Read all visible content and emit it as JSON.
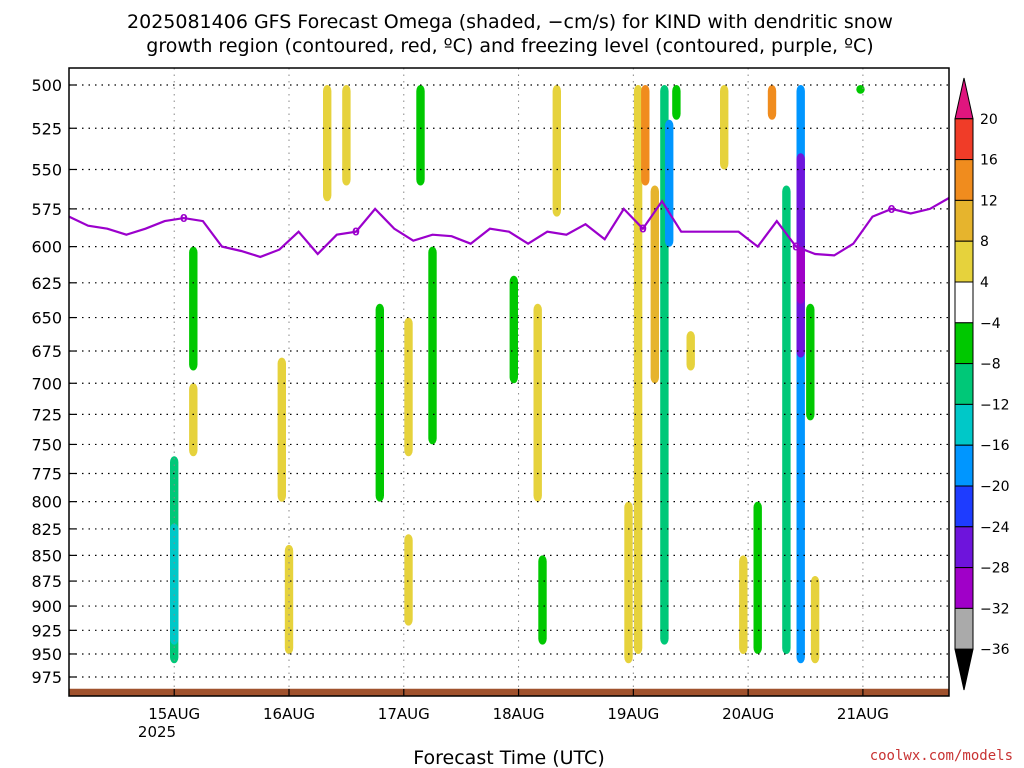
{
  "chart_data": {
    "type": "heatmap",
    "title_line1": "2025081406 GFS Forecast Omega (shaded, −cm/s) for KIND with dendritic snow",
    "title_line2": "growth region (contoured, red, ºC) and freezing level (contoured, purple, ºC)",
    "xlabel": "Forecast Time (UTC)",
    "x_ticks": [
      "15AUG",
      "16AUG",
      "17AUG",
      "18AUG",
      "19AUG",
      "20AUG",
      "21AUG"
    ],
    "x_year_label": "2025",
    "x_range_hours": [
      -22,
      162
    ],
    "y_ticks": [
      500,
      525,
      550,
      575,
      600,
      625,
      650,
      675,
      700,
      725,
      750,
      775,
      800,
      825,
      850,
      875,
      900,
      925,
      950,
      975
    ],
    "y_scale": "log-pressure",
    "y_range_hpa": [
      490,
      990
    ],
    "grid": true,
    "colorbar_levels": [
      20,
      16,
      12,
      8,
      4,
      -4,
      -8,
      -12,
      -16,
      -20,
      -24,
      -28,
      -32,
      -36
    ],
    "colorbar_colors": [
      "#e0157e",
      "#f03c28",
      "#f08c1e",
      "#e6b42d",
      "#e6d23c",
      "#ffffff",
      "#00c800",
      "#00c878",
      "#00c8c8",
      "#0096ff",
      "#1e3cff",
      "#6e14dc",
      "#a000c8",
      "#aaaaaa",
      "#000000"
    ],
    "freezing_level_label": "0",
    "freezing_level_series": {
      "name": "freezing level (0ºC)",
      "color": "#9b00cc",
      "hours": [
        -22,
        -18,
        -14,
        -10,
        -6,
        -2,
        2,
        6,
        10,
        14,
        18,
        22,
        26,
        30,
        34,
        38,
        42,
        46,
        50,
        54,
        58,
        62,
        66,
        70,
        74,
        78,
        82,
        86,
        90,
        94,
        98,
        102,
        106,
        110,
        114,
        118,
        122,
        126,
        130,
        134,
        138,
        142,
        146,
        150,
        154,
        158,
        162
      ],
      "hpa": [
        580,
        586,
        588,
        592,
        588,
        583,
        581,
        583,
        600,
        603,
        607,
        602,
        590,
        605,
        592,
        590,
        575,
        588,
        596,
        592,
        593,
        598,
        588,
        590,
        598,
        590,
        592,
        585,
        595,
        575,
        588,
        570,
        590,
        590,
        590,
        590,
        600,
        583,
        600,
        605,
        606,
        598,
        580,
        575,
        578,
        575,
        568
      ]
    },
    "omega_shading": [
      {
        "hour": 0.0,
        "p_top": 760,
        "p_bot": 960,
        "value": -10
      },
      {
        "hour": 0.0,
        "p_top": 820,
        "p_bot": 940,
        "value": -14
      },
      {
        "hour": 4.0,
        "p_top": 700,
        "p_bot": 760,
        "value": 5
      },
      {
        "hour": 4.0,
        "p_top": 600,
        "p_bot": 690,
        "value": -7
      },
      {
        "hour": 24.0,
        "p_top": 840,
        "p_bot": 950,
        "value": 5
      },
      {
        "hour": 22.5,
        "p_top": 680,
        "p_bot": 800,
        "value": 5
      },
      {
        "hour": 32.0,
        "p_top": 500,
        "p_bot": 570,
        "value": 5
      },
      {
        "hour": 36.0,
        "p_top": 500,
        "p_bot": 560,
        "value": 5
      },
      {
        "hour": 43.0,
        "p_top": 640,
        "p_bot": 800,
        "value": -6
      },
      {
        "hour": 49.0,
        "p_top": 650,
        "p_bot": 760,
        "value": 5
      },
      {
        "hour": 51.5,
        "p_top": 500,
        "p_bot": 560,
        "value": -7
      },
      {
        "hour": 54.0,
        "p_top": 600,
        "p_bot": 750,
        "value": -7
      },
      {
        "hour": 49.0,
        "p_top": 830,
        "p_bot": 920,
        "value": 5
      },
      {
        "hour": 71.0,
        "p_top": 620,
        "p_bot": 700,
        "value": -6
      },
      {
        "hour": 76.0,
        "p_top": 640,
        "p_bot": 800,
        "value": 5
      },
      {
        "hour": 77.0,
        "p_top": 850,
        "p_bot": 940,
        "value": -7
      },
      {
        "hour": 80.0,
        "p_top": 500,
        "p_bot": 580,
        "value": 5
      },
      {
        "hour": 97.0,
        "p_top": 500,
        "p_bot": 950,
        "value": 6
      },
      {
        "hour": 98.5,
        "p_top": 500,
        "p_bot": 560,
        "value": 14
      },
      {
        "hour": 100.5,
        "p_top": 560,
        "p_bot": 700,
        "value": 9
      },
      {
        "hour": 102.5,
        "p_top": 500,
        "p_bot": 940,
        "value": -12
      },
      {
        "hour": 103.5,
        "p_top": 520,
        "p_bot": 600,
        "value": -17
      },
      {
        "hour": 105.0,
        "p_top": 500,
        "p_bot": 520,
        "value": -8
      },
      {
        "hour": 95.0,
        "p_top": 800,
        "p_bot": 960,
        "value": 7
      },
      {
        "hour": 108.0,
        "p_top": 660,
        "p_bot": 690,
        "value": 5
      },
      {
        "hour": 115.0,
        "p_top": 500,
        "p_bot": 550,
        "value": 5
      },
      {
        "hour": 119.0,
        "p_top": 850,
        "p_bot": 950,
        "value": 7
      },
      {
        "hour": 122.0,
        "p_top": 800,
        "p_bot": 950,
        "value": -7
      },
      {
        "hour": 125.0,
        "p_top": 500,
        "p_bot": 520,
        "value": 13
      },
      {
        "hour": 128.0,
        "p_top": 560,
        "p_bot": 950,
        "value": -12
      },
      {
        "hour": 131.0,
        "p_top": 500,
        "p_bot": 960,
        "value": -17
      },
      {
        "hour": 131.0,
        "p_top": 540,
        "p_bot": 680,
        "value": -25
      },
      {
        "hour": 131.0,
        "p_top": 600,
        "p_bot": 640,
        "value": -29
      },
      {
        "hour": 133.0,
        "p_top": 640,
        "p_bot": 730,
        "value": -7
      },
      {
        "hour": 134.0,
        "p_top": 870,
        "p_bot": 960,
        "value": 6
      },
      {
        "hour": 143.5,
        "p_top": 500,
        "p_bot": 505,
        "value": -6
      }
    ]
  },
  "watermark": "coolwx.com/models"
}
